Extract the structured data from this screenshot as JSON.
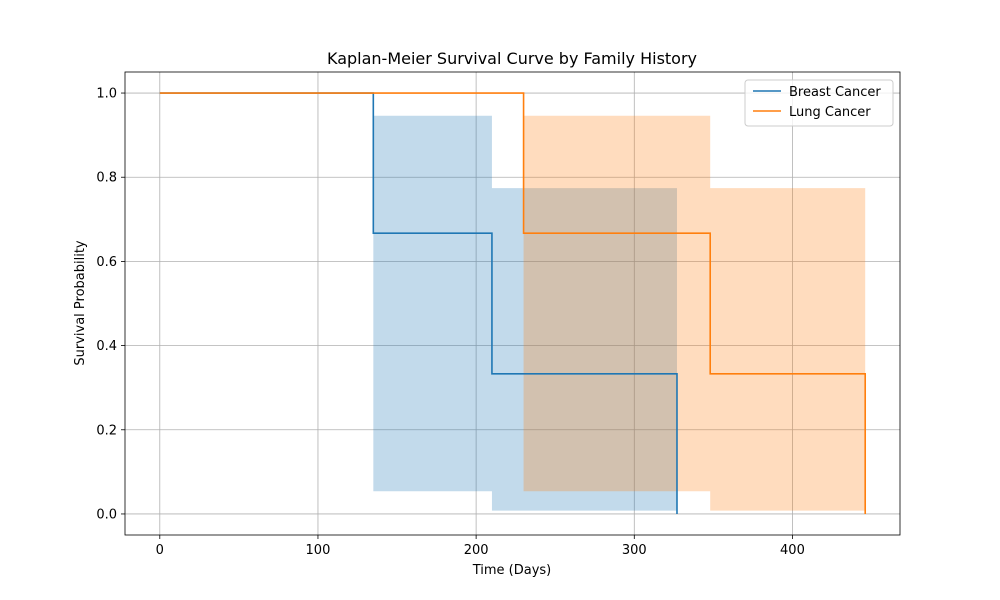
{
  "chart_data": {
    "type": "line",
    "title": "Kaplan-Meier Survival Curve by Family History",
    "xlabel": "Time (Days)",
    "ylabel": "Survival Probability",
    "xlim": [
      -22,
      468
    ],
    "ylim": [
      -0.05,
      1.05
    ],
    "xticks": [
      0,
      100,
      200,
      300,
      400
    ],
    "yticks": [
      0.0,
      0.2,
      0.4,
      0.6,
      0.8,
      1.0
    ],
    "xtick_labels": [
      "0",
      "100",
      "200",
      "300",
      "400"
    ],
    "ytick_labels": [
      "0.0",
      "0.2",
      "0.4",
      "0.6",
      "0.8",
      "1.0"
    ],
    "grid": true,
    "legend_position": "top-right",
    "step": "post",
    "series": [
      {
        "name": "Breast Cancer",
        "color": "#1f77b4",
        "x": [
          0,
          135,
          210,
          327
        ],
        "y": [
          1.0,
          0.667,
          0.333,
          0.0
        ],
        "ci_lower": [
          1.0,
          0.054,
          0.008,
          0.008
        ],
        "ci_upper": [
          1.0,
          0.946,
          0.774,
          0.774
        ]
      },
      {
        "name": "Lung Cancer",
        "color": "#ff7f0e",
        "x": [
          0,
          230,
          348,
          446
        ],
        "y": [
          1.0,
          0.667,
          0.333,
          0.0
        ],
        "ci_lower": [
          1.0,
          0.054,
          0.008,
          0.008
        ],
        "ci_upper": [
          1.0,
          0.946,
          0.774,
          0.774
        ]
      }
    ]
  }
}
